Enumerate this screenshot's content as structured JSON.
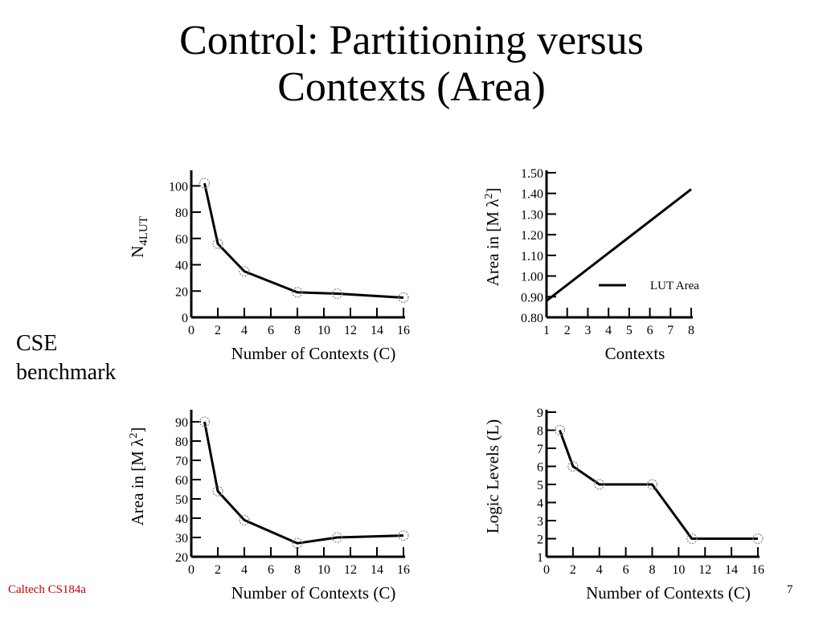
{
  "slide": {
    "title_line1": "Control: Partitioning versus",
    "title_line2": "Contexts (Area)",
    "side_label_line1": "CSE",
    "side_label_line2": "benchmark",
    "footer_left": "Caltech CS184a",
    "footer_right": "7"
  },
  "chart_data": [
    {
      "type": "line",
      "xlabel": "Number of Contexts (C)",
      "ylabel": "N4LUT",
      "ylabel_main": "N",
      "ylabel_sub": "4LUT",
      "xlim": [
        0,
        16
      ],
      "ylim": [
        0,
        110
      ],
      "xticks": [
        0,
        2,
        4,
        6,
        8,
        10,
        12,
        14,
        16
      ],
      "xticklabels": [
        "0",
        "2",
        "4",
        "6",
        "8",
        "10",
        "12",
        "14",
        "16"
      ],
      "yticks": [
        0,
        20,
        40,
        60,
        80,
        100
      ],
      "yticklabels": [
        "0",
        "20",
        "40",
        "60",
        "80",
        "100"
      ],
      "markers": "open-circle",
      "series": [
        {
          "x": [
            1,
            2,
            4,
            8,
            11,
            16
          ],
          "y": [
            102,
            56,
            35,
            19,
            18,
            15
          ]
        }
      ]
    },
    {
      "type": "line",
      "xlabel": "Contexts",
      "ylabel": "Area in [M λ2]",
      "ylabel_main": "Area in [M λ",
      "ylabel_sup": "2",
      "ylabel_end": "]",
      "xlim": [
        1,
        8
      ],
      "ylim": [
        0.8,
        1.5
      ],
      "xticks": [
        1,
        2,
        3,
        4,
        5,
        6,
        7,
        8
      ],
      "xticklabels": [
        "1",
        "2",
        "3",
        "4",
        "5",
        "6",
        "7",
        "8"
      ],
      "yticks": [
        0.8,
        0.9,
        1.0,
        1.1,
        1.2,
        1.3,
        1.4,
        1.5
      ],
      "yticklabels": [
        "0.80",
        "0.90",
        "1.00",
        "1.10",
        "1.20",
        "1.30",
        "1.40",
        "1.50"
      ],
      "markers": "none",
      "legend": "LUT Area",
      "legend_position": "lower-right",
      "series": [
        {
          "name": "LUT Area",
          "x": [
            1,
            8
          ],
          "y": [
            0.88,
            1.42
          ]
        }
      ]
    },
    {
      "type": "line",
      "xlabel": "Number of Contexts (C)",
      "ylabel": "Area  in [M λ2]",
      "ylabel_main": "Area  in [M λ",
      "ylabel_sup": "2",
      "ylabel_end": "]",
      "xlim": [
        0,
        16
      ],
      "ylim": [
        20,
        95
      ],
      "xticks": [
        0,
        2,
        4,
        6,
        8,
        10,
        12,
        14,
        16
      ],
      "xticklabels": [
        "0",
        "2",
        "4",
        "6",
        "8",
        "10",
        "12",
        "14",
        "16"
      ],
      "yticks": [
        20,
        30,
        40,
        50,
        60,
        70,
        80,
        90
      ],
      "yticklabels": [
        "20",
        "30",
        "40",
        "50",
        "60",
        "70",
        "80",
        "90"
      ],
      "markers": "open-circle",
      "series": [
        {
          "x": [
            1,
            2,
            4,
            8,
            11,
            16
          ],
          "y": [
            90,
            54,
            39,
            27,
            30,
            31
          ]
        }
      ]
    },
    {
      "type": "line",
      "xlabel": "Number of Contexts (C)",
      "ylabel": "Logic Levels (L)",
      "xlim": [
        0,
        16
      ],
      "ylim": [
        1,
        9
      ],
      "xticks": [
        0,
        2,
        4,
        6,
        8,
        10,
        12,
        14,
        16
      ],
      "xticklabels": [
        "0",
        "2",
        "4",
        "6",
        "8",
        "10",
        "12",
        "14",
        "16"
      ],
      "yticks": [
        1,
        2,
        3,
        4,
        5,
        6,
        7,
        8,
        9
      ],
      "yticklabels": [
        "1",
        "2",
        "3",
        "4",
        "5",
        "6",
        "7",
        "8",
        "9"
      ],
      "markers": "open-circle",
      "series": [
        {
          "x": [
            1,
            2,
            4,
            8,
            11,
            16
          ],
          "y": [
            8,
            6,
            5,
            5,
            2,
            2
          ]
        }
      ]
    }
  ]
}
